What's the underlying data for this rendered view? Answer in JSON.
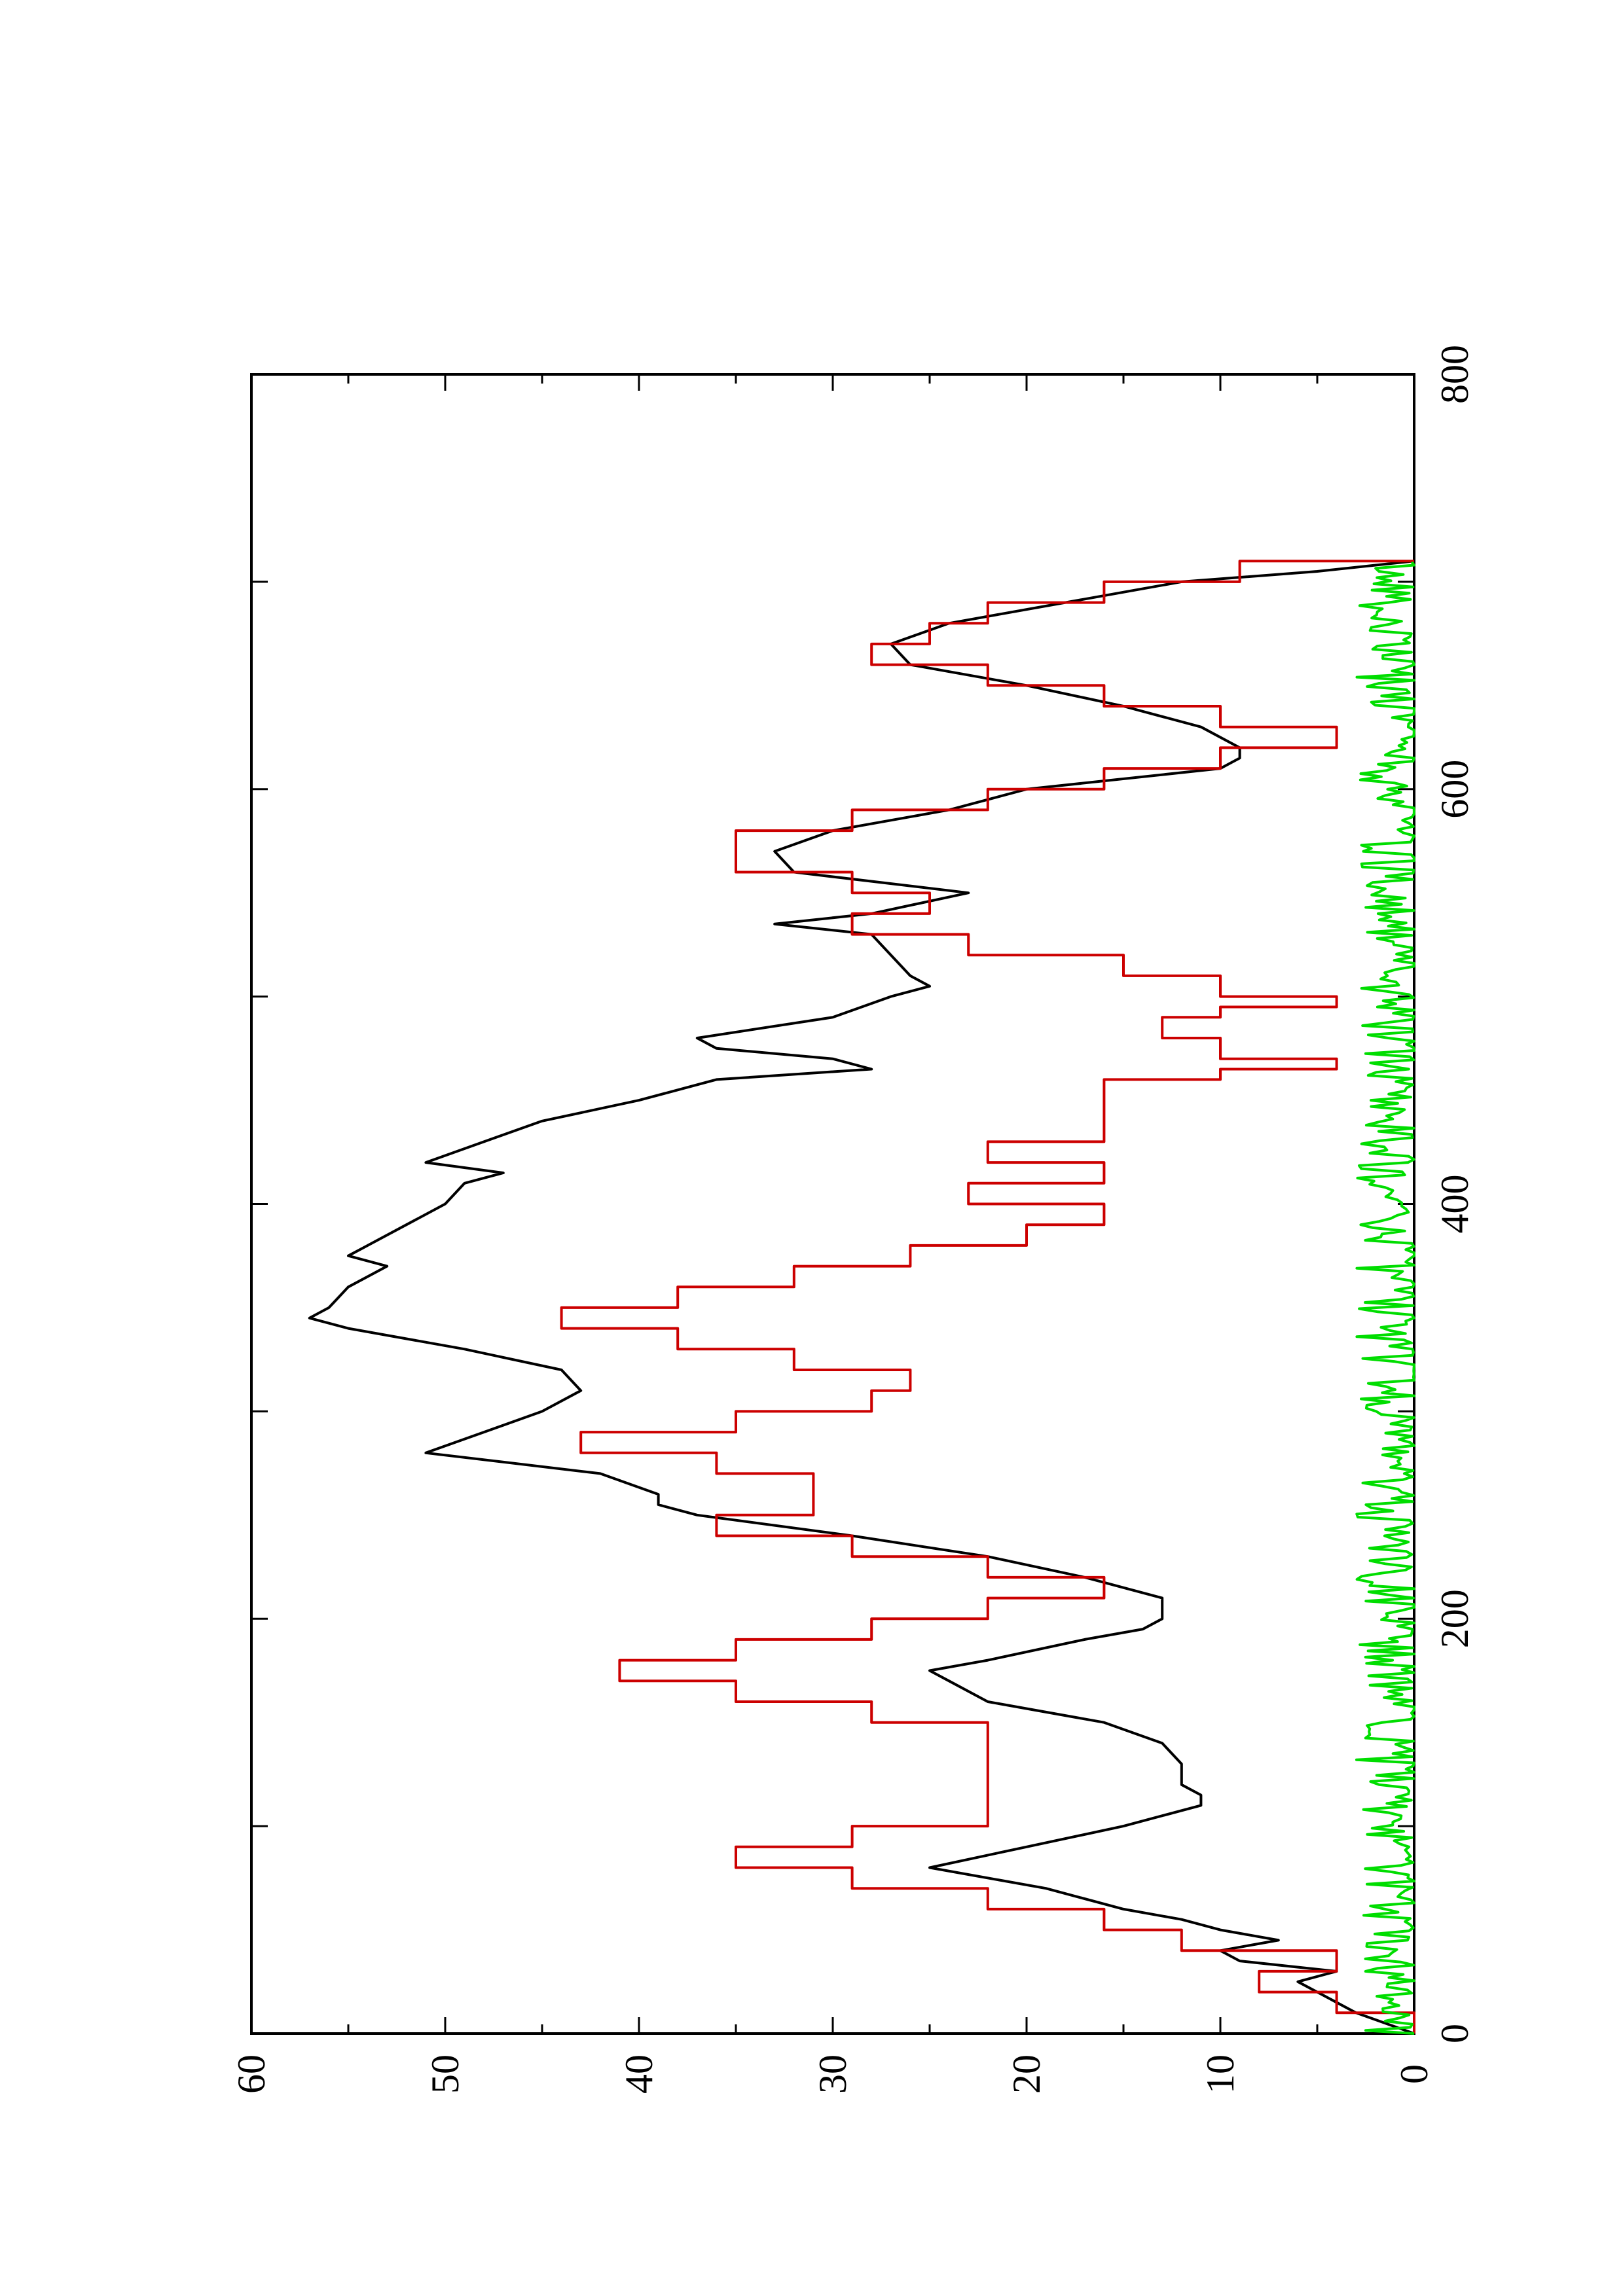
{
  "chart_data": {
    "type": "line",
    "title": "",
    "xlabel": "",
    "ylabel": "",
    "orientation": "rotated 90° counter-clockwise (x axis runs bottom-to-top, y axis runs right-to-left)",
    "xlim": [
      0,
      800
    ],
    "ylim": [
      0,
      60
    ],
    "x_ticks": [
      "0",
      "200",
      "400",
      "600",
      "800"
    ],
    "y_ticks": [
      "0",
      "10",
      "20",
      "30",
      "40",
      "50",
      "60"
    ],
    "grid": false,
    "legend": "none",
    "series": [
      {
        "color": "#000000",
        "x": [
          0,
          10,
          20,
          25,
          30,
          35,
          40,
          45,
          50,
          55,
          60,
          70,
          80,
          90,
          100,
          110,
          115,
          120,
          130,
          140,
          150,
          160,
          170,
          175,
          180,
          190,
          195,
          200,
          210,
          220,
          230,
          240,
          250,
          255,
          260,
          270,
          280,
          290,
          300,
          310,
          320,
          330,
          340,
          345,
          350,
          360,
          370,
          375,
          380,
          390,
          400,
          410,
          415,
          420,
          430,
          440,
          450,
          460,
          465,
          470,
          475,
          480,
          490,
          500,
          505,
          510,
          520,
          530,
          535,
          540,
          550,
          560,
          570,
          580,
          590,
          600,
          610,
          615,
          620,
          630,
          640,
          650,
          660,
          670,
          680,
          690,
          700,
          705,
          710
        ],
        "values": [
          0,
          3,
          5,
          6,
          4,
          9,
          10,
          7,
          10,
          12,
          15,
          19,
          25,
          20,
          15,
          11,
          11,
          12,
          12,
          13,
          16,
          22,
          24,
          25,
          22,
          17,
          14,
          13,
          13,
          17,
          22,
          29,
          37,
          39,
          39,
          42,
          51,
          48,
          45,
          43,
          44,
          49,
          55,
          57,
          56,
          55,
          53,
          55,
          54,
          52,
          50,
          49,
          47,
          51,
          48,
          45,
          40,
          36,
          28,
          30,
          36,
          37,
          30,
          27,
          25,
          26,
          27,
          28,
          33,
          28,
          23,
          32,
          33,
          30,
          24,
          20,
          10,
          9,
          9,
          11,
          15,
          20,
          26,
          27,
          24,
          18,
          12,
          5,
          0
        ]
      },
      {
        "color": "#cc0000",
        "x": [
          0,
          10,
          20,
          30,
          40,
          50,
          60,
          70,
          80,
          90,
          100,
          110,
          120,
          130,
          140,
          150,
          160,
          170,
          180,
          190,
          200,
          210,
          220,
          230,
          240,
          250,
          260,
          270,
          280,
          290,
          300,
          310,
          320,
          330,
          340,
          350,
          360,
          370,
          380,
          390,
          400,
          410,
          420,
          430,
          440,
          450,
          460,
          465,
          470,
          480,
          490,
          495,
          500,
          510,
          520,
          530,
          540,
          550,
          560,
          570,
          580,
          590,
          600,
          610,
          620,
          630,
          640,
          650,
          660,
          670,
          680,
          690,
          700,
          710
        ],
        "values": [
          0,
          4,
          8,
          4,
          12,
          16,
          22,
          29,
          35,
          29,
          22,
          22,
          22,
          22,
          22,
          28,
          35,
          41,
          35,
          28,
          22,
          16,
          22,
          29,
          36,
          31,
          31,
          36,
          43,
          35,
          28,
          26,
          32,
          38,
          44,
          38,
          32,
          26,
          20,
          16,
          23,
          16,
          22,
          16,
          16,
          16,
          10,
          4,
          10,
          13,
          10,
          4,
          10,
          15,
          23,
          29,
          25,
          29,
          35,
          35,
          29,
          22,
          16,
          10,
          4,
          10,
          16,
          22,
          28,
          25,
          22,
          16,
          9,
          0
        ]
      },
      {
        "color": "#00dd00",
        "x": [
          0,
          710
        ],
        "noise_amplitude": 3,
        "values": [
          0,
          0
        ]
      }
    ]
  }
}
